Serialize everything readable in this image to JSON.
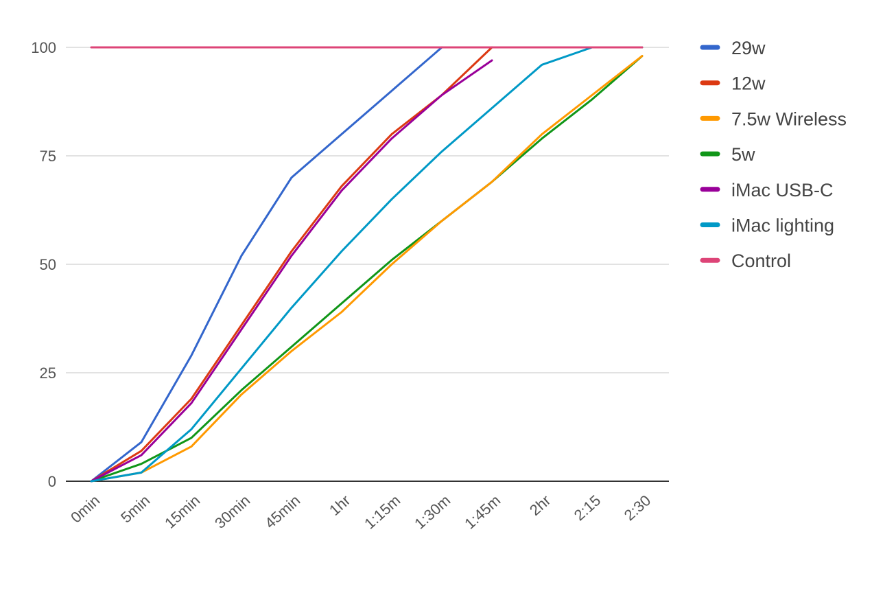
{
  "chart_data": {
    "type": "line",
    "title": "",
    "xlabel": "",
    "ylabel": "",
    "categories": [
      "0min",
      "5min",
      "15min",
      "30min",
      "45min",
      "1hr",
      "1:15m",
      "1:30m",
      "1:45m",
      "2hr",
      "2:15",
      "2:30"
    ],
    "ylim": [
      0,
      100
    ],
    "yticks": [
      0,
      25,
      50,
      75,
      100
    ],
    "grid": true,
    "legend_position": "right",
    "series": [
      {
        "name": "29w",
        "color": "#3366cc",
        "values": [
          0,
          9,
          29,
          52,
          70,
          80,
          90,
          100,
          null,
          null,
          null,
          null
        ]
      },
      {
        "name": "12w",
        "color": "#dc3912",
        "values": [
          0,
          7,
          19,
          36,
          53,
          68,
          80,
          89,
          100,
          null,
          null,
          null
        ]
      },
      {
        "name": "7.5w Wireless",
        "color": "#ff9900",
        "values": [
          0,
          2,
          8,
          20,
          30,
          39,
          50,
          60,
          69,
          80,
          89,
          98
        ]
      },
      {
        "name": "5w",
        "color": "#109618",
        "values": [
          0,
          4,
          10,
          21,
          31,
          41,
          51,
          60,
          69,
          79,
          88,
          98
        ]
      },
      {
        "name": "iMac USB-C",
        "color": "#990099",
        "values": [
          0,
          6,
          18,
          35,
          52,
          67,
          79,
          89,
          97,
          null,
          null,
          null
        ]
      },
      {
        "name": "iMac lighting",
        "color": "#0099c6",
        "values": [
          0,
          2,
          12,
          26,
          40,
          53,
          65,
          76,
          86,
          96,
          100,
          100
        ]
      },
      {
        "name": "Control",
        "color": "#dd4477",
        "values": [
          100,
          100,
          100,
          100,
          100,
          100,
          100,
          100,
          100,
          100,
          100,
          100
        ]
      }
    ]
  }
}
